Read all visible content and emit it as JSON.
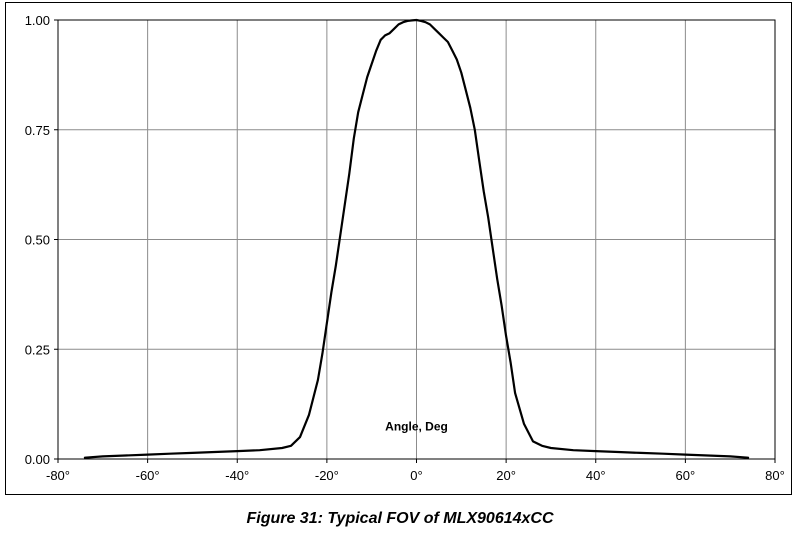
{
  "caption": "Figure 31: Typical FOV of MLX90614xCC",
  "chart_data": {
    "type": "line",
    "annotation": "Angle, Deg",
    "x_ticks": [
      "-80°",
      "-60°",
      "-40°",
      "-20°",
      "0°",
      "20°",
      "40°",
      "60°",
      "80°"
    ],
    "y_ticks": [
      "0.00",
      "0.25",
      "0.50",
      "0.75",
      "1.00"
    ],
    "xlim": [
      -80,
      80
    ],
    "ylim": [
      0,
      1
    ],
    "grid": true,
    "line_color": "#000000",
    "grid_color": "#8c8c8c",
    "series": [
      {
        "x": [
          -74,
          -70,
          -65,
          -60,
          -55,
          -50,
          -45,
          -40,
          -35,
          -30,
          -28,
          -26,
          -24,
          -22,
          -21,
          -20,
          -19,
          -18,
          -17,
          -16,
          -15,
          -14,
          -13,
          -12,
          -11,
          -10,
          -9,
          -8,
          -7,
          -6,
          -5,
          -4,
          -3,
          -2,
          -1,
          0,
          1,
          2,
          3,
          4,
          5,
          6,
          7,
          8,
          9,
          10,
          11,
          12,
          13,
          14,
          15,
          16,
          17,
          18,
          19,
          20,
          21,
          22,
          24,
          26,
          28,
          30,
          35,
          40,
          45,
          50,
          55,
          60,
          65,
          70,
          74
        ],
        "y": [
          0.003,
          0.006,
          0.008,
          0.01,
          0.012,
          0.014,
          0.016,
          0.018,
          0.02,
          0.025,
          0.03,
          0.05,
          0.1,
          0.18,
          0.24,
          0.31,
          0.38,
          0.44,
          0.51,
          0.58,
          0.65,
          0.73,
          0.79,
          0.83,
          0.87,
          0.9,
          0.93,
          0.955,
          0.965,
          0.97,
          0.98,
          0.99,
          0.995,
          0.998,
          0.999,
          1.0,
          0.998,
          0.995,
          0.99,
          0.98,
          0.97,
          0.96,
          0.95,
          0.93,
          0.91,
          0.88,
          0.84,
          0.8,
          0.75,
          0.68,
          0.61,
          0.55,
          0.48,
          0.41,
          0.35,
          0.28,
          0.22,
          0.15,
          0.08,
          0.04,
          0.03,
          0.025,
          0.02,
          0.018,
          0.016,
          0.014,
          0.012,
          0.01,
          0.008,
          0.006,
          0.003
        ]
      }
    ]
  }
}
